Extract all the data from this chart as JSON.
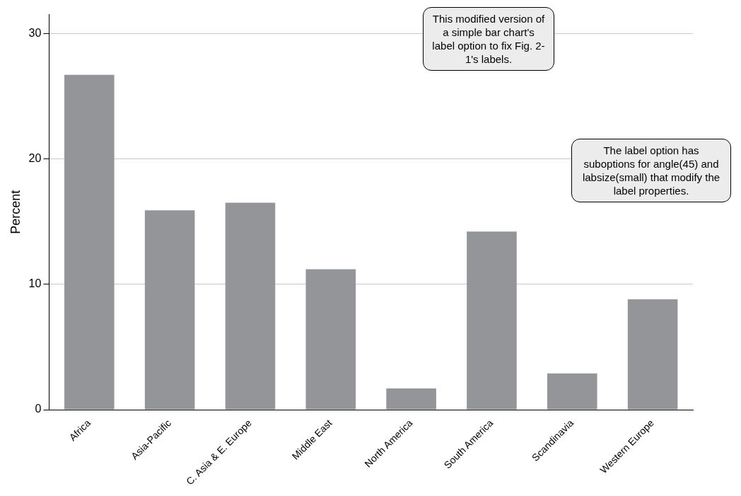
{
  "chart_data": {
    "type": "bar",
    "ylabel": "Percent",
    "categories": [
      "Africa",
      "Asia-Pacific",
      "C. Asia & E. Europe",
      "Middle East",
      "North America",
      "South America",
      "Scandinavia",
      "Western Europe"
    ],
    "values": [
      26.7,
      15.9,
      16.5,
      11.2,
      1.7,
      14.2,
      2.9,
      8.8
    ],
    "color": "#939598",
    "ylim": [
      0,
      31.5
    ],
    "yticks": [
      0,
      10,
      20,
      30
    ],
    "grid": "y",
    "legend": false,
    "annotations": [
      "This modified version of a simple bar chart's label option to fix Fig. 2-1's labels.",
      "The label option has suboptions for angle(45) and labsize(small) that modify the label properties."
    ]
  }
}
